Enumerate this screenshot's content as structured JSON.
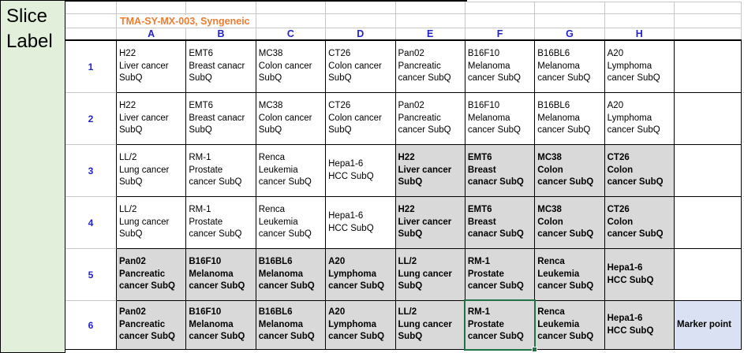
{
  "slice_label": "Slice\nLabel",
  "title": "TMA-SY-MX-003, Syngeneic",
  "column_headers": [
    "A",
    "B",
    "C",
    "D",
    "E",
    "F",
    "G",
    "H"
  ],
  "colors": {
    "slice-bg": "#e2efda",
    "gray-bg": "#d9d9d9",
    "marker-bg": "#d9e1f2",
    "header-blue": "#2222cc",
    "title-orange": "#ed7d31",
    "selection-green": "#217346"
  },
  "rows": [
    {
      "num": "1",
      "cells": [
        {
          "text": "H22\nLiver cancer\nSubQ",
          "variant": "plain"
        },
        {
          "text": "EMT6\nBreast canacr\nSubQ",
          "variant": "plain"
        },
        {
          "text": "MC38\nColon cancer\nSubQ",
          "variant": "plain"
        },
        {
          "text": "CT26\nColon cancer\nSubQ",
          "variant": "plain"
        },
        {
          "text": "Pan02\nPancreatic\ncancer SubQ",
          "variant": "plain"
        },
        {
          "text": "B16F10\nMelanoma\ncancer SubQ",
          "variant": "plain"
        },
        {
          "text": "B16BL6\nMelanoma\ncancer SubQ",
          "variant": "plain"
        },
        {
          "text": "A20\nLymphoma\ncancer SubQ",
          "variant": "plain"
        },
        {
          "text": "",
          "variant": "plain"
        }
      ]
    },
    {
      "num": "2",
      "cells": [
        {
          "text": "H22\nLiver cancer\nSubQ",
          "variant": "plain"
        },
        {
          "text": "EMT6\nBreast canacr\nSubQ",
          "variant": "plain"
        },
        {
          "text": "MC38\nColon cancer\nSubQ",
          "variant": "plain"
        },
        {
          "text": "CT26\nColon cancer\nSubQ",
          "variant": "plain"
        },
        {
          "text": "Pan02\nPancreatic\ncancer SubQ",
          "variant": "plain"
        },
        {
          "text": "B16F10\nMelanoma\ncancer SubQ",
          "variant": "plain"
        },
        {
          "text": "B16BL6\nMelanoma\ncancer SubQ",
          "variant": "plain"
        },
        {
          "text": "A20\nLymphoma\ncancer SubQ",
          "variant": "plain"
        },
        {
          "text": "",
          "variant": "plain"
        }
      ]
    },
    {
      "num": "3",
      "cells": [
        {
          "text": "LL/2\nLung cancer\nSubQ",
          "variant": "plain"
        },
        {
          "text": "RM-1\nProstate\ncancer SubQ",
          "variant": "plain"
        },
        {
          "text": "Renca\nLeukemia\ncancer SubQ",
          "variant": "plain"
        },
        {
          "text": "Hepa1-6\nHCC SubQ",
          "variant": "plain"
        },
        {
          "text": "H22\nLiver cancer\nSubQ",
          "variant": "gray"
        },
        {
          "text": "EMT6\nBreast\ncanacr SubQ",
          "variant": "gray"
        },
        {
          "text": "MC38\nColon\ncancer SubQ",
          "variant": "gray"
        },
        {
          "text": "CT26\nColon\ncancer SubQ",
          "variant": "gray"
        },
        {
          "text": "",
          "variant": "plain"
        }
      ]
    },
    {
      "num": "4",
      "cells": [
        {
          "text": "LL/2\nLung cancer\nSubQ",
          "variant": "plain"
        },
        {
          "text": "RM-1\nProstate\ncancer SubQ",
          "variant": "plain"
        },
        {
          "text": "Renca\nLeukemia\ncancer SubQ",
          "variant": "plain"
        },
        {
          "text": "Hepa1-6\nHCC SubQ",
          "variant": "plain"
        },
        {
          "text": "H22\nLiver cancer\nSubQ",
          "variant": "gray"
        },
        {
          "text": "EMT6\nBreast\ncanacr SubQ",
          "variant": "gray"
        },
        {
          "text": "MC38\nColon\ncancer SubQ",
          "variant": "gray"
        },
        {
          "text": "CT26\nColon\ncancer SubQ",
          "variant": "gray"
        },
        {
          "text": "",
          "variant": "plain"
        }
      ]
    },
    {
      "num": "5",
      "cells": [
        {
          "text": "Pan02\nPancreatic\ncancer SubQ",
          "variant": "gray"
        },
        {
          "text": "B16F10\nMelanoma\ncancer SubQ",
          "variant": "gray"
        },
        {
          "text": "B16BL6\nMelanoma\ncancer SubQ",
          "variant": "gray"
        },
        {
          "text": "A20\nLymphoma\ncancer SubQ",
          "variant": "gray"
        },
        {
          "text": "LL/2\nLung cancer\nSubQ",
          "variant": "gray"
        },
        {
          "text": "RM-1\nProstate\ncancer SubQ",
          "variant": "gray"
        },
        {
          "text": "Renca\nLeukemia\ncancer SubQ",
          "variant": "gray"
        },
        {
          "text": "Hepa1-6\nHCC SubQ",
          "variant": "gray"
        },
        {
          "text": "",
          "variant": "plain"
        }
      ]
    },
    {
      "num": "6",
      "cells": [
        {
          "text": "Pan02\nPancreatic\ncancer SubQ",
          "variant": "gray"
        },
        {
          "text": "B16F10\nMelanoma\ncancer SubQ",
          "variant": "gray"
        },
        {
          "text": "B16BL6\nMelanoma\ncancer SubQ",
          "variant": "gray"
        },
        {
          "text": "A20\nLymphoma\ncancer SubQ",
          "variant": "gray"
        },
        {
          "text": "LL/2\nLung cancer\nSubQ",
          "variant": "gray"
        },
        {
          "text": "RM-1\nProstate\ncancer SubQ",
          "variant": "gray",
          "selected": true
        },
        {
          "text": "Renca\nLeukemia\ncancer SubQ",
          "variant": "gray"
        },
        {
          "text": "Hepa1-6\nHCC SubQ",
          "variant": "gray"
        },
        {
          "text": "Marker point",
          "variant": "marker"
        }
      ]
    }
  ]
}
